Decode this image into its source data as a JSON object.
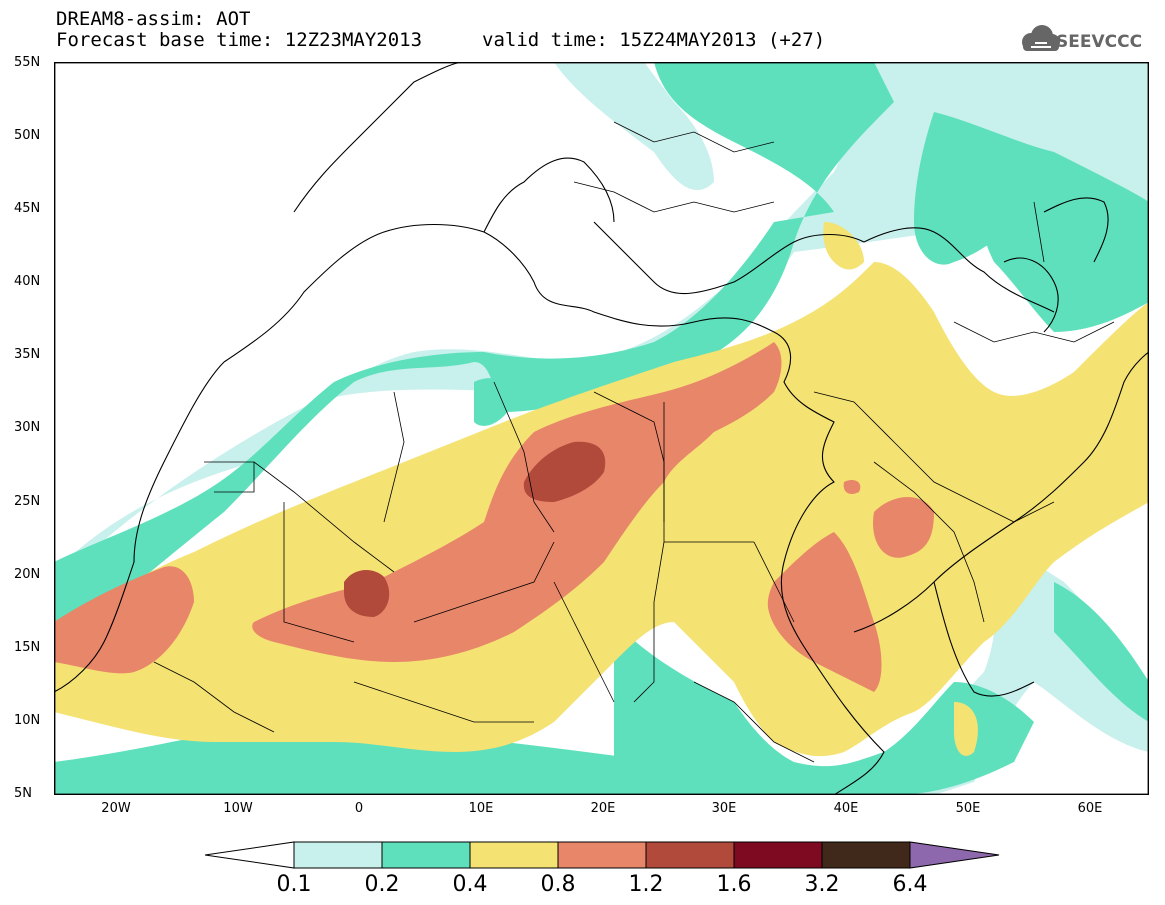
{
  "header": {
    "title": "DREAM8-assim: AOT",
    "base_time": "Forecast base time: 12Z23MAY2013",
    "valid_time": "valid time: 15Z24MAY2013 (+27)"
  },
  "logo": {
    "text": "SEEVCCC",
    "icon": "cloud-icon"
  },
  "map": {
    "projection": "lat-lon",
    "lon_range": [
      -25,
      65
    ],
    "lat_range": [
      5,
      55
    ],
    "lat_labels": [
      "55N",
      "50N",
      "45N",
      "40N",
      "35N",
      "30N",
      "25N",
      "20N",
      "15N",
      "10N",
      "5N"
    ],
    "lon_labels": [
      "20W",
      "10W",
      "0",
      "10E",
      "20E",
      "30E",
      "40E",
      "50E",
      "60E"
    ]
  },
  "colorbar": {
    "levels": [
      "0.1",
      "0.2",
      "0.4",
      "0.8",
      "1.2",
      "1.6",
      "3.2",
      "6.4"
    ],
    "colors": [
      "#ffffff",
      "#c8f0ec",
      "#5ee0bc",
      "#f4e272",
      "#e8866a",
      "#b24a3c",
      "#7e0a22",
      "#40281a",
      "#8e68ac"
    ]
  }
}
